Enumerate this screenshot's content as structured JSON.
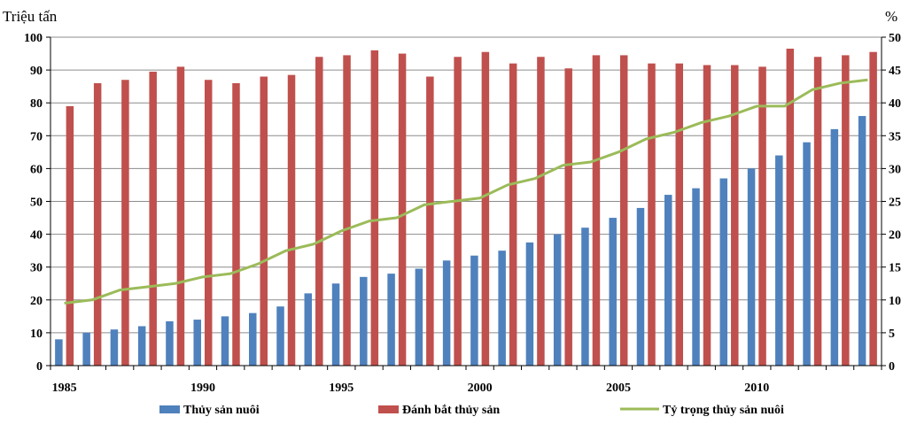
{
  "chart_data": {
    "type": "bar",
    "y_left_label": "Triệu tấn",
    "y_right_label": "%",
    "y_left_range": [
      0,
      100
    ],
    "y_left_ticks": [
      0,
      10,
      20,
      30,
      40,
      50,
      60,
      70,
      80,
      90,
      100
    ],
    "y_right_range": [
      0,
      50
    ],
    "y_right_ticks": [
      0,
      5,
      10,
      15,
      20,
      25,
      30,
      35,
      40,
      45,
      50
    ],
    "x": [
      1985,
      1986,
      1987,
      1988,
      1989,
      1990,
      1991,
      1992,
      1993,
      1994,
      1995,
      1996,
      1997,
      1998,
      1999,
      2000,
      2001,
      2002,
      2003,
      2004,
      2005,
      2006,
      2007,
      2008,
      2009,
      2010,
      2011,
      2012,
      2013,
      2014
    ],
    "x_tick_labels": [
      "1985",
      "1990",
      "1995",
      "2000",
      "2005",
      "2010"
    ],
    "grid": true,
    "legend_position": "bottom",
    "series": [
      {
        "name": "Thủy sản nuôi",
        "type": "bar",
        "axis": "left",
        "color": "#4F81BD",
        "values": [
          8,
          10,
          11,
          12,
          13.5,
          14,
          15,
          16,
          18,
          22,
          25,
          27,
          28,
          29.5,
          32,
          33.5,
          35,
          37.5,
          40,
          42,
          45,
          48,
          52,
          54,
          57,
          60,
          64,
          68,
          72,
          76
        ]
      },
      {
        "name": "Đánh bắt thủy sản",
        "type": "bar",
        "axis": "left",
        "color": "#C0504D",
        "values": [
          79,
          86,
          87,
          89.5,
          91,
          87,
          86,
          88,
          88.5,
          94,
          94.5,
          96,
          95,
          88,
          94,
          95.5,
          92,
          94,
          90.5,
          94.5,
          94.5,
          92,
          92,
          91.5,
          91.5,
          91,
          96.5,
          94,
          94.5,
          95.5
        ]
      },
      {
        "name": "Tỷ trọng thủy sản nuôi",
        "type": "line",
        "axis": "right",
        "color": "#9BBB59",
        "values": [
          9.5,
          10,
          11.5,
          12,
          12.5,
          13.5,
          14,
          15.5,
          17.5,
          18.5,
          20.5,
          22,
          22.5,
          24.5,
          25,
          25.5,
          27.5,
          28.5,
          30.5,
          31,
          32.5,
          34.5,
          35.5,
          37,
          38,
          39.5,
          39.5,
          42,
          43,
          43.5
        ]
      }
    ]
  }
}
